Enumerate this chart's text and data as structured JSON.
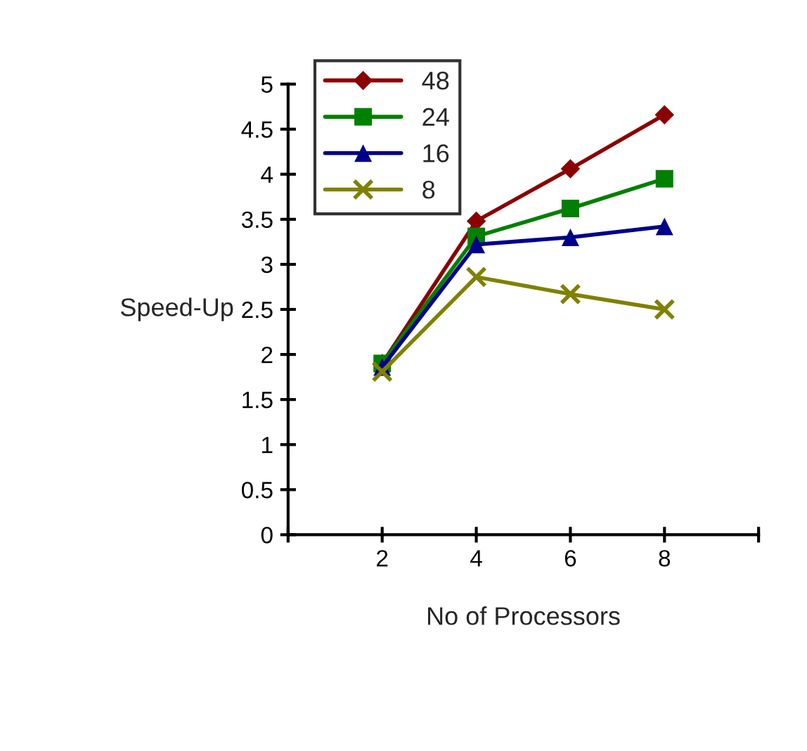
{
  "chart_data": {
    "type": "line",
    "xlabel": "No of Processors",
    "ylabel": "Speed-Up",
    "x": [
      2,
      4,
      6,
      8
    ],
    "series": [
      {
        "name": "48",
        "color": "#8b0000",
        "values": [
          1.9,
          3.48,
          4.06,
          4.66
        ],
        "marker": "diamond"
      },
      {
        "name": "24",
        "color": "#008000",
        "values": [
          1.9,
          3.31,
          3.62,
          3.95
        ],
        "marker": "square"
      },
      {
        "name": "16",
        "color": "#00008b",
        "values": [
          1.86,
          3.22,
          3.3,
          3.42
        ],
        "marker": "triangle"
      },
      {
        "name": "8",
        "color": "#808000",
        "values": [
          1.81,
          2.86,
          2.67,
          2.5
        ],
        "marker": "cross"
      }
    ],
    "xlim": [
      0,
      10
    ],
    "xticks": [
      {
        "value": 0,
        "label": null
      },
      2,
      4,
      6,
      8,
      {
        "value": 10,
        "label": null
      }
    ],
    "ylim": [
      0,
      5
    ],
    "yticks": [
      0,
      0.5,
      1,
      1.5,
      2,
      2.5,
      3,
      3.5,
      4,
      4.5,
      5
    ],
    "grid": false,
    "legend": "top left",
    "line_style": "solid"
  }
}
